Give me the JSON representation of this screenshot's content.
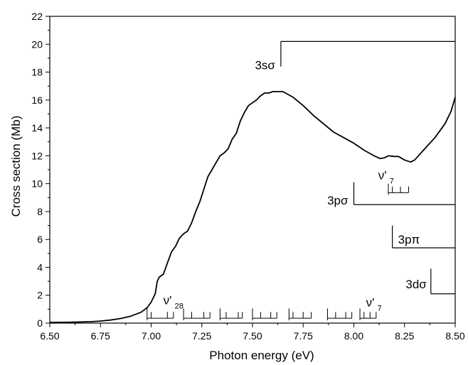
{
  "chart_data": {
    "type": "line",
    "xlabel": "Photon energy (eV)",
    "ylabel": "Cross section (Mb)",
    "xlim": [
      6.5,
      8.5
    ],
    "ylim": [
      0,
      22
    ],
    "xticks": [
      "6.50",
      "6.75",
      "7.00",
      "7.25",
      "7.50",
      "7.75",
      "8.00",
      "8.25",
      "8.50"
    ],
    "yticks": [
      "0",
      "2",
      "4",
      "6",
      "8",
      "10",
      "12",
      "14",
      "16",
      "18",
      "20",
      "22"
    ],
    "series": [
      {
        "points": [
          [
            6.5,
            0.05
          ],
          [
            6.6,
            0.06
          ],
          [
            6.7,
            0.1
          ],
          [
            6.75,
            0.15
          ],
          [
            6.8,
            0.22
          ],
          [
            6.85,
            0.33
          ],
          [
            6.9,
            0.5
          ],
          [
            6.95,
            0.78
          ],
          [
            6.98,
            1.1
          ],
          [
            7.0,
            1.5
          ],
          [
            7.02,
            2.1
          ],
          [
            7.03,
            3.0
          ],
          [
            7.04,
            3.3
          ],
          [
            7.06,
            3.5
          ],
          [
            7.08,
            4.3
          ],
          [
            7.1,
            5.1
          ],
          [
            7.12,
            5.5
          ],
          [
            7.14,
            6.1
          ],
          [
            7.16,
            6.4
          ],
          [
            7.18,
            6.6
          ],
          [
            7.2,
            7.2
          ],
          [
            7.22,
            8.0
          ],
          [
            7.24,
            8.7
          ],
          [
            7.26,
            9.6
          ],
          [
            7.28,
            10.5
          ],
          [
            7.3,
            11.0
          ],
          [
            7.32,
            11.5
          ],
          [
            7.34,
            12.0
          ],
          [
            7.36,
            12.2
          ],
          [
            7.38,
            12.5
          ],
          [
            7.4,
            13.2
          ],
          [
            7.42,
            13.6
          ],
          [
            7.44,
            14.5
          ],
          [
            7.46,
            15.1
          ],
          [
            7.48,
            15.6
          ],
          [
            7.5,
            15.8
          ],
          [
            7.52,
            16.0
          ],
          [
            7.54,
            16.3
          ],
          [
            7.56,
            16.5
          ],
          [
            7.58,
            16.5
          ],
          [
            7.6,
            16.6
          ],
          [
            7.62,
            16.6
          ],
          [
            7.65,
            16.6
          ],
          [
            7.7,
            16.2
          ],
          [
            7.75,
            15.6
          ],
          [
            7.8,
            14.9
          ],
          [
            7.85,
            14.3
          ],
          [
            7.9,
            13.7
          ],
          [
            7.95,
            13.3
          ],
          [
            8.0,
            12.9
          ],
          [
            8.05,
            12.4
          ],
          [
            8.1,
            12.0
          ],
          [
            8.13,
            11.8
          ],
          [
            8.15,
            11.85
          ],
          [
            8.17,
            12.0
          ],
          [
            8.2,
            11.95
          ],
          [
            8.22,
            11.95
          ],
          [
            8.25,
            11.7
          ],
          [
            8.28,
            11.55
          ],
          [
            8.3,
            11.7
          ],
          [
            8.35,
            12.5
          ],
          [
            8.4,
            13.3
          ],
          [
            8.45,
            14.3
          ],
          [
            8.48,
            15.2
          ],
          [
            8.5,
            16.2
          ]
        ]
      }
    ],
    "thresholds": [
      {
        "label": "3sσ",
        "x_start": 7.64,
        "x_end": 8.5,
        "y": 20.2,
        "y_low": 18.4
      },
      {
        "label": "3pσ",
        "x_start": 8.0,
        "x_end": 8.5,
        "y": 8.5,
        "y_low": 10.1
      },
      {
        "label": "3pπ",
        "x_start": 8.19,
        "x_end": 8.5,
        "y": 5.4,
        "y_low": 7.0
      },
      {
        "label": "3dσ",
        "x_start": 8.38,
        "x_end": 8.5,
        "y": 2.1,
        "y_low": 3.9
      }
    ],
    "progressions": [
      {
        "label_main": "ν'",
        "label_sub": "28",
        "y_top": 1.05,
        "y_bottom": 0.35,
        "combs": [
          [
            6.98,
            7.0,
            7.08,
            7.11
          ],
          [
            7.16,
            7.2,
            7.26,
            7.29
          ],
          [
            7.34,
            7.37,
            7.43,
            7.45
          ],
          [
            7.5,
            7.54,
            7.59,
            7.62
          ],
          [
            7.68,
            7.7,
            7.75,
            7.79
          ],
          [
            7.87,
            7.91,
            7.96,
            7.99
          ],
          [
            8.03,
            8.05,
            8.08,
            8.11
          ]
        ]
      },
      {
        "label_main": "ν'",
        "label_sub": "7",
        "y_top": 10.0,
        "y_bottom": 9.35,
        "combs": [
          [
            8.17,
            8.19,
            8.23,
            8.27
          ]
        ]
      }
    ]
  }
}
